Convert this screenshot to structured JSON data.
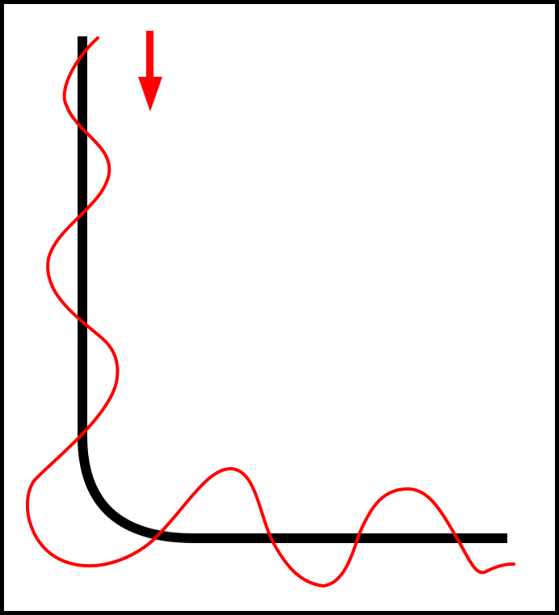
{
  "diagram": {
    "colors": {
      "frame": "#000000",
      "guide": "#000000",
      "wave": "#ff0000",
      "arrow": "#ff0000",
      "background": "#ffffff"
    },
    "elements": [
      {
        "name": "l-shaped-guide",
        "description_hidden": true
      },
      {
        "name": "wave-path",
        "description_hidden": true
      },
      {
        "name": "down-arrow-icon",
        "direction": "down"
      }
    ]
  }
}
